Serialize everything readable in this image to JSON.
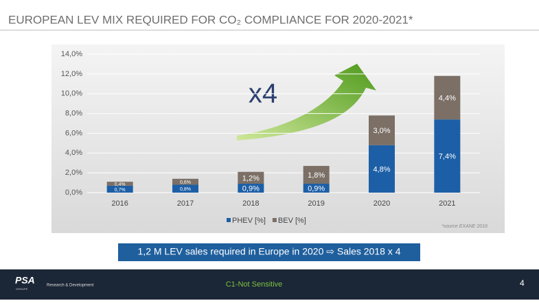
{
  "chart_data": {
    "type": "bar",
    "stacked": true,
    "title": "EUROPEAN LEV MIX REQUIRED FOR CO₂ COMPLIANCE FOR 2020-2021*",
    "categories": [
      "2016",
      "2017",
      "2018",
      "2019",
      "2020",
      "2021"
    ],
    "series": [
      {
        "name": "PHEV [%]",
        "color": "#1d5fa6",
        "values": [
          0.7,
          0.8,
          0.9,
          0.9,
          4.8,
          7.4
        ],
        "value_labels": [
          "0,7%",
          "0,8%",
          "0,9%",
          "0,9%",
          "4,8%",
          "7,4%"
        ]
      },
      {
        "name": "BEV [%]",
        "color": "#7b6f66",
        "values": [
          0.4,
          0.6,
          1.2,
          1.8,
          3.0,
          4.4
        ],
        "value_labels": [
          "0,4%",
          "0,6%",
          "1,2%",
          "1,8%",
          "3,0%",
          "4,4%"
        ]
      }
    ],
    "ylim": [
      0,
      14
    ],
    "yticks": [
      {
        "value": 0,
        "label": "0,0%"
      },
      {
        "value": 2,
        "label": "2,0%"
      },
      {
        "value": 4,
        "label": "4,0%"
      },
      {
        "value": 6,
        "label": "6,0%"
      },
      {
        "value": 8,
        "label": "8,0%"
      },
      {
        "value": 10,
        "label": "10,0%"
      },
      {
        "value": 12,
        "label": "12,0%"
      },
      {
        "value": 14,
        "label": "14,0%"
      }
    ],
    "grid": true,
    "legend": "bottom",
    "annotations": [
      "x4",
      "*source EXANE 2016"
    ]
  },
  "slide": {
    "banner": "1,2 M LEV sales required in Europe in 2020 ⇨ Sales  2018 x 4",
    "logo": "PSA",
    "logo_sub": "GROUPE",
    "department": "Research & Development",
    "classification": "C1-Not Sensitive",
    "page_number": "4"
  }
}
